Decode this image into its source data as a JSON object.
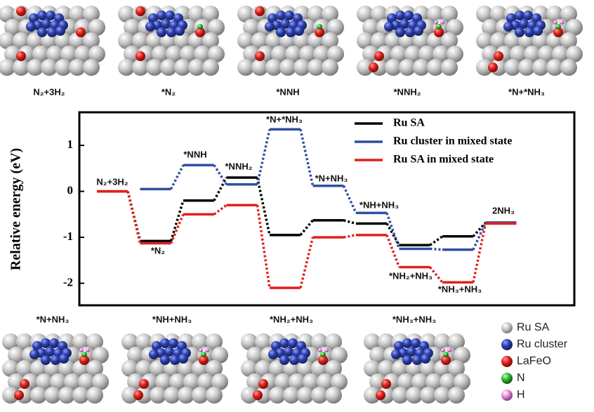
{
  "images": {
    "top": [
      "N₂+3H₂",
      "*N₂",
      "*NNH",
      "*NNH₂",
      "*N+*NH₃"
    ],
    "bottom": [
      "*N+NH₃",
      "*NH+NH₃",
      "*NH₂+NH₃",
      "*NH₃+NH₃"
    ]
  },
  "atom_legend": [
    {
      "label": "Ru SA",
      "color": "#e0201c"
    },
    {
      "label": "Ru cluster",
      "color": "#2c3fa8"
    },
    {
      "label": "LaFeO",
      "color": "#bdbdbd"
    },
    {
      "label": "N",
      "color": "#2fb52f"
    },
    {
      "label": "H",
      "color": "#e58ad8"
    }
  ],
  "chart_data": {
    "type": "energy_profile",
    "y_label": "Relative energy (eV)",
    "categories": [
      "N₂+3H₂",
      "*N₂",
      "*NNH",
      "*NNH₂",
      "*N+*NH₃",
      "*N+NH₃",
      "*NH+NH₃",
      "*NH₂+NH₃",
      "*NH₃+NH₃",
      "2NH₃"
    ],
    "series": [
      {
        "name": "Ru SA",
        "color": "#000000",
        "values": [
          0,
          -1.08,
          -0.2,
          0.3,
          -0.95,
          -0.63,
          -0.7,
          -1.17,
          -0.98,
          -0.68
        ]
      },
      {
        "name": "Ru cluster in mixed state",
        "color": "#2f4f9f",
        "values": [
          null,
          0.05,
          0.57,
          0.15,
          1.35,
          0.12,
          -0.47,
          -1.25,
          -1.27,
          -0.68
        ]
      },
      {
        "name": "Ru SA in mixed state",
        "color": "#e0201c",
        "values": [
          0,
          -1.13,
          -0.5,
          -0.3,
          -2.1,
          -1.0,
          -0.95,
          -1.65,
          -1.98,
          -0.7
        ]
      }
    ],
    "ylim": [
      -2.48,
      1.72
    ],
    "yticks": [
      -2,
      -1,
      0,
      1
    ],
    "legend_position": "upper right"
  }
}
